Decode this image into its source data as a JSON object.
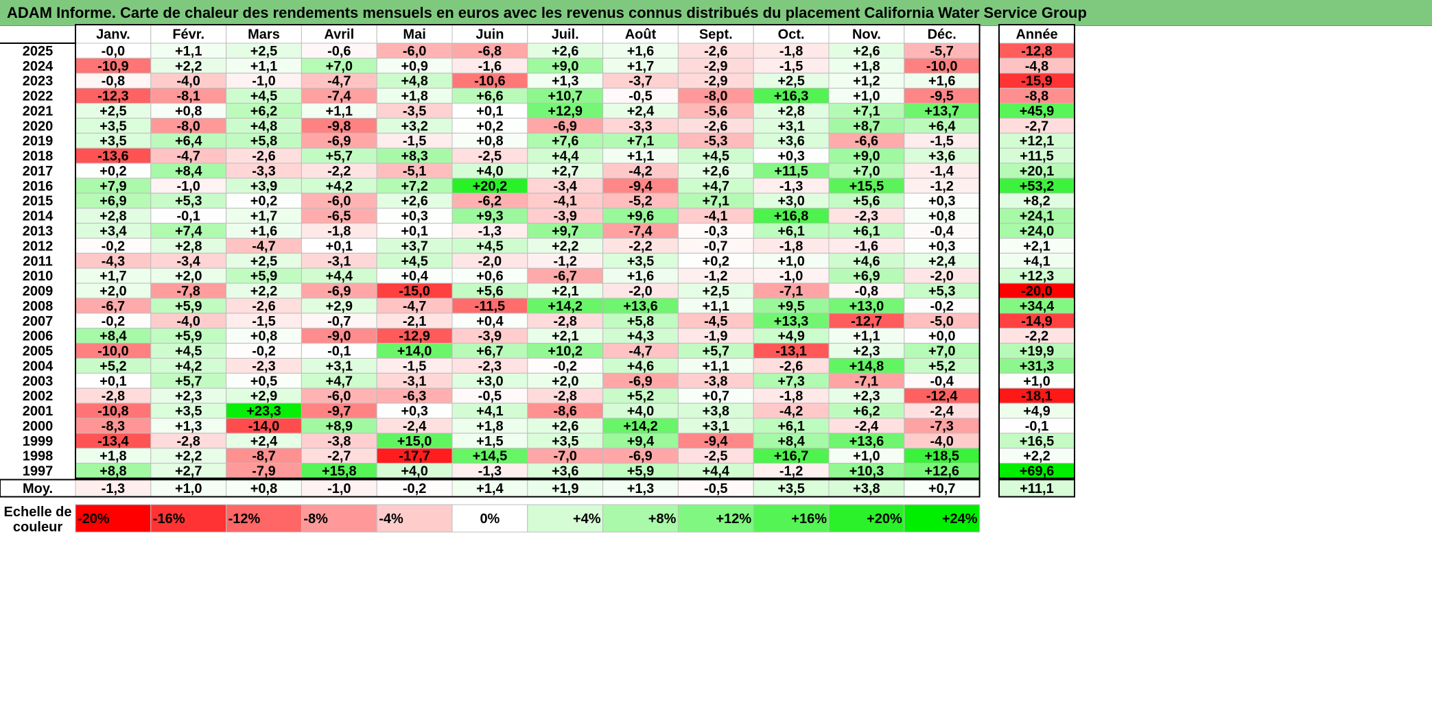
{
  "title": "ADAM Informe. Carte de chaleur des rendements mensuels en euros avec les revenus connus distribués du placement California Water Service Group",
  "chart_data": {
    "type": "heatmap",
    "title": "ADAM Informe. Carte de chaleur des rendements mensuels en euros avec les revenus connus distribués du placement California Water Service Group",
    "columns": [
      "Janv.",
      "Févr.",
      "Mars",
      "Avril",
      "Mai",
      "Juin",
      "Juil.",
      "Août",
      "Sept.",
      "Oct.",
      "Nov.",
      "Déc."
    ],
    "annual_header": "Année",
    "rows": [
      {
        "year": "2025",
        "values": [
          "-0,0",
          "+1,1",
          "+2,5",
          "-0,6",
          "-6,0",
          "-6,8",
          "+2,6",
          "+1,6",
          "-2,6",
          "-1,8",
          "+2,6",
          "-5,7"
        ],
        "annual": "-12,8"
      },
      {
        "year": "2024",
        "values": [
          "-10,9",
          "+2,2",
          "+1,1",
          "+7,0",
          "+0,9",
          "-1,6",
          "+9,0",
          "+1,7",
          "-2,9",
          "-1,5",
          "+1,8",
          "-10,0"
        ],
        "annual": "-4,8"
      },
      {
        "year": "2023",
        "values": [
          "-0,8",
          "-4,0",
          "-1,0",
          "-4,7",
          "+4,8",
          "-10,6",
          "+1,3",
          "-3,7",
          "-2,9",
          "+2,5",
          "+1,2",
          "+1,6"
        ],
        "annual": "-15,9"
      },
      {
        "year": "2022",
        "values": [
          "-12,3",
          "-8,1",
          "+4,5",
          "-7,4",
          "+1,8",
          "+6,6",
          "+10,7",
          "-0,5",
          "-8,0",
          "+16,3",
          "+1,0",
          "-9,5"
        ],
        "annual": "-8,8"
      },
      {
        "year": "2021",
        "values": [
          "+2,5",
          "+0,8",
          "+6,2",
          "+1,1",
          "-3,5",
          "+0,1",
          "+12,9",
          "+2,4",
          "-5,6",
          "+2,8",
          "+7,1",
          "+13,7"
        ],
        "annual": "+45,9"
      },
      {
        "year": "2020",
        "values": [
          "+3,5",
          "-8,0",
          "+4,8",
          "-9,8",
          "+3,2",
          "+0,2",
          "-6,9",
          "-3,3",
          "-2,6",
          "+3,1",
          "+8,7",
          "+6,4"
        ],
        "annual": "-2,7"
      },
      {
        "year": "2019",
        "values": [
          "+3,5",
          "+6,4",
          "+5,8",
          "-6,9",
          "-1,5",
          "+0,8",
          "+7,6",
          "+7,1",
          "-5,3",
          "+3,6",
          "-6,6",
          "-1,5"
        ],
        "annual": "+12,1"
      },
      {
        "year": "2018",
        "values": [
          "-13,6",
          "-4,7",
          "-2,6",
          "+5,7",
          "+8,3",
          "-2,5",
          "+4,4",
          "+1,1",
          "+4,5",
          "+0,3",
          "+9,0",
          "+3,6"
        ],
        "annual": "+11,5"
      },
      {
        "year": "2017",
        "values": [
          "+0,2",
          "+8,4",
          "-3,3",
          "-2,2",
          "-5,1",
          "+4,0",
          "+2,7",
          "-4,2",
          "+2,6",
          "+11,5",
          "+7,0",
          "-1,4"
        ],
        "annual": "+20,1"
      },
      {
        "year": "2016",
        "values": [
          "+7,9",
          "-1,0",
          "+3,9",
          "+4,2",
          "+7,2",
          "+20,2",
          "-3,4",
          "-9,4",
          "+4,7",
          "-1,3",
          "+15,5",
          "-1,2"
        ],
        "annual": "+53,2"
      },
      {
        "year": "2015",
        "values": [
          "+6,9",
          "+5,3",
          "+0,2",
          "-6,0",
          "+2,6",
          "-6,2",
          "-4,1",
          "-5,2",
          "+7,1",
          "+3,0",
          "+5,6",
          "+0,3"
        ],
        "annual": "+8,2"
      },
      {
        "year": "2014",
        "values": [
          "+2,8",
          "-0,1",
          "+1,7",
          "-6,5",
          "+0,3",
          "+9,3",
          "-3,9",
          "+9,6",
          "-4,1",
          "+16,8",
          "-2,3",
          "+0,8"
        ],
        "annual": "+24,1"
      },
      {
        "year": "2013",
        "values": [
          "+3,4",
          "+7,4",
          "+1,6",
          "-1,8",
          "+0,1",
          "-1,3",
          "+9,7",
          "-7,4",
          "-0,3",
          "+6,1",
          "+6,1",
          "-0,4"
        ],
        "annual": "+24,0"
      },
      {
        "year": "2012",
        "values": [
          "-0,2",
          "+2,8",
          "-4,7",
          "+0,1",
          "+3,7",
          "+4,5",
          "+2,2",
          "-2,2",
          "-0,7",
          "-1,8",
          "-1,6",
          "+0,3"
        ],
        "annual": "+2,1"
      },
      {
        "year": "2011",
        "values": [
          "-4,3",
          "-3,4",
          "+2,5",
          "-3,1",
          "+4,5",
          "-2,0",
          "-1,2",
          "+3,5",
          "+0,2",
          "+1,0",
          "+4,6",
          "+2,4"
        ],
        "annual": "+4,1"
      },
      {
        "year": "2010",
        "values": [
          "+1,7",
          "+2,0",
          "+5,9",
          "+4,4",
          "+0,4",
          "+0,6",
          "-6,7",
          "+1,6",
          "-1,2",
          "-1,0",
          "+6,9",
          "-2,0"
        ],
        "annual": "+12,3"
      },
      {
        "year": "2009",
        "values": [
          "+2,0",
          "-7,8",
          "+2,2",
          "-6,9",
          "-15,0",
          "+5,6",
          "+2,1",
          "-2,0",
          "+2,5",
          "-7,1",
          "-0,8",
          "+5,3"
        ],
        "annual": "-20,0"
      },
      {
        "year": "2008",
        "values": [
          "-6,7",
          "+5,9",
          "-2,6",
          "+2,9",
          "-4,7",
          "-11,5",
          "+14,2",
          "+13,6",
          "+1,1",
          "+9,5",
          "+13,0",
          "-0,2"
        ],
        "annual": "+34,4"
      },
      {
        "year": "2007",
        "values": [
          "-0,2",
          "-4,0",
          "-1,5",
          "-0,7",
          "-2,1",
          "+0,4",
          "-2,8",
          "+5,8",
          "-4,5",
          "+13,3",
          "-12,7",
          "-5,0"
        ],
        "annual": "-14,9"
      },
      {
        "year": "2006",
        "values": [
          "+8,4",
          "+5,9",
          "+0,8",
          "-9,0",
          "-12,9",
          "-3,9",
          "+2,1",
          "+4,3",
          "-1,9",
          "+4,9",
          "+1,1",
          "+0,0"
        ],
        "annual": "-2,2"
      },
      {
        "year": "2005",
        "values": [
          "-10,0",
          "+4,5",
          "-0,2",
          "-0,1",
          "+14,0",
          "+6,7",
          "+10,2",
          "-4,7",
          "+5,7",
          "-13,1",
          "+2,3",
          "+7,0"
        ],
        "annual": "+19,9"
      },
      {
        "year": "2004",
        "values": [
          "+5,2",
          "+4,2",
          "-2,3",
          "+3,1",
          "-1,5",
          "-2,3",
          "-0,2",
          "+4,6",
          "+1,1",
          "-2,6",
          "+14,8",
          "+5,2"
        ],
        "annual": "+31,3"
      },
      {
        "year": "2003",
        "values": [
          "+0,1",
          "+5,7",
          "+0,5",
          "+4,7",
          "-3,1",
          "+3,0",
          "+2,0",
          "-6,9",
          "-3,8",
          "+7,3",
          "-7,1",
          "-0,4"
        ],
        "annual": "+1,0"
      },
      {
        "year": "2002",
        "values": [
          "-2,8",
          "+2,3",
          "+2,9",
          "-6,0",
          "-6,3",
          "-0,5",
          "-2,8",
          "+5,2",
          "+0,7",
          "-1,8",
          "+2,3",
          "-12,4"
        ],
        "annual": "-18,1"
      },
      {
        "year": "2001",
        "values": [
          "-10,8",
          "+3,5",
          "+23,3",
          "-9,7",
          "+0,3",
          "+4,1",
          "-8,6",
          "+4,0",
          "+3,8",
          "-4,2",
          "+6,2",
          "-2,4"
        ],
        "annual": "+4,9"
      },
      {
        "year": "2000",
        "values": [
          "-8,3",
          "+1,3",
          "-14,0",
          "+8,9",
          "-2,4",
          "+1,8",
          "+2,6",
          "+14,2",
          "+3,1",
          "+6,1",
          "-2,4",
          "-7,3"
        ],
        "annual": "-0,1"
      },
      {
        "year": "1999",
        "values": [
          "-13,4",
          "-2,8",
          "+2,4",
          "-3,8",
          "+15,0",
          "+1,5",
          "+3,5",
          "+9,4",
          "-9,4",
          "+8,4",
          "+13,6",
          "-4,0"
        ],
        "annual": "+16,5"
      },
      {
        "year": "1998",
        "values": [
          "+1,8",
          "+2,2",
          "-8,7",
          "-2,7",
          "-17,7",
          "+14,5",
          "-7,0",
          "-6,9",
          "-2,5",
          "+16,7",
          "+1,0",
          "+18,5"
        ],
        "annual": "+2,2"
      },
      {
        "year": "1997",
        "values": [
          "+8,8",
          "+2,7",
          "-7,9",
          "+15,8",
          "+4,0",
          "-1,3",
          "+3,6",
          "+5,9",
          "+4,4",
          "-1,2",
          "+10,3",
          "+12,6"
        ],
        "annual": "+69,6"
      }
    ],
    "average": {
      "label": "Moy.",
      "values": [
        "-1,3",
        "+1,0",
        "+0,8",
        "-1,0",
        "-0,2",
        "+1,4",
        "+1,9",
        "+1,3",
        "-0,5",
        "+3,5",
        "+3,8",
        "+0,7"
      ],
      "annual": "+11,1"
    },
    "color_scale": {
      "label_line1": "Echelle de",
      "label_line2": "couleur",
      "stops": [
        "-20%",
        "-16%",
        "-12%",
        "-8%",
        "-4%",
        "0%",
        "+4%",
        "+8%",
        "+12%",
        "+16%",
        "+20%",
        "+24%"
      ],
      "stop_values": [
        -20,
        -16,
        -12,
        -8,
        -4,
        0,
        4,
        8,
        12,
        16,
        20,
        24
      ]
    },
    "colors": {
      "negative": "#ff0000",
      "neutral": "#ffffff",
      "positive": "#00ee00",
      "title_bg": "#7fc97f"
    }
  }
}
